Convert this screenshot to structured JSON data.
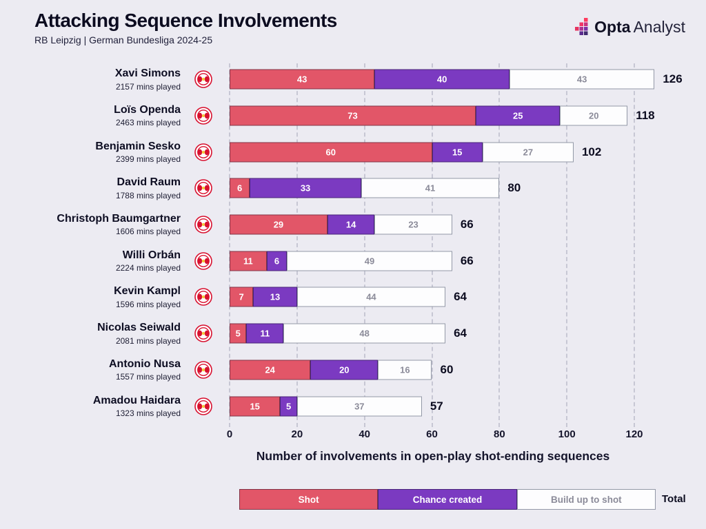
{
  "header": {
    "title": "Attacking Sequence Involvements",
    "subtitle": "RB Leipzig | German Bundesliga 2024-25",
    "brand_bold": "Opta",
    "brand_light": "Analyst"
  },
  "legend": {
    "shot": "Shot",
    "chance": "Chance created",
    "buildup": "Build up to shot",
    "total": "Total"
  },
  "colors": {
    "shot": "#e25668",
    "chance": "#7b3ac1",
    "buildup": "#fdfdfe",
    "background": "#ecebf2",
    "gray_text": "#8b8b99",
    "dark_text": "#0c0c20"
  },
  "chart_data": {
    "type": "bar",
    "orientation": "horizontal",
    "stacked": true,
    "title": "Attacking Sequence Involvements",
    "subtitle": "RB Leipzig | German Bundesliga 2024-25",
    "xlabel": "Number of involvements in open-play shot-ending sequences",
    "x_ticks": [
      0,
      20,
      40,
      60,
      80,
      100,
      120
    ],
    "xlim": [
      0,
      130
    ],
    "grid": "dashed-vertical",
    "legend_position": "bottom",
    "series_names": [
      "Shot",
      "Chance created",
      "Build up to shot"
    ],
    "rows": [
      {
        "player": "Xavi Simons",
        "mins": "2157 mins played",
        "values": [
          43,
          40,
          43
        ],
        "total": 126
      },
      {
        "player": "Loïs Openda",
        "mins": "2463 mins played",
        "values": [
          73,
          25,
          20
        ],
        "total": 118
      },
      {
        "player": "Benjamin Sesko",
        "mins": "2399 mins played",
        "values": [
          60,
          15,
          27
        ],
        "total": 102
      },
      {
        "player": "David Raum",
        "mins": "1788 mins played",
        "values": [
          6,
          33,
          41
        ],
        "total": 80
      },
      {
        "player": "Christoph Baumgartner",
        "mins": "1606 mins played",
        "values": [
          29,
          14,
          23
        ],
        "total": 66
      },
      {
        "player": "Willi Orbán",
        "mins": "2224 mins played",
        "values": [
          11,
          6,
          49
        ],
        "total": 66
      },
      {
        "player": "Kevin Kampl",
        "mins": "1596 mins played",
        "values": [
          7,
          13,
          44
        ],
        "total": 64
      },
      {
        "player": "Nicolas Seiwald",
        "mins": "2081 mins played",
        "values": [
          5,
          11,
          48
        ],
        "total": 64
      },
      {
        "player": "Antonio Nusa",
        "mins": "1557 mins played",
        "values": [
          24,
          20,
          16
        ],
        "total": 60
      },
      {
        "player": "Amadou Haidara",
        "mins": "1323 mins played",
        "values": [
          15,
          5,
          37
        ],
        "total": 57
      }
    ]
  }
}
